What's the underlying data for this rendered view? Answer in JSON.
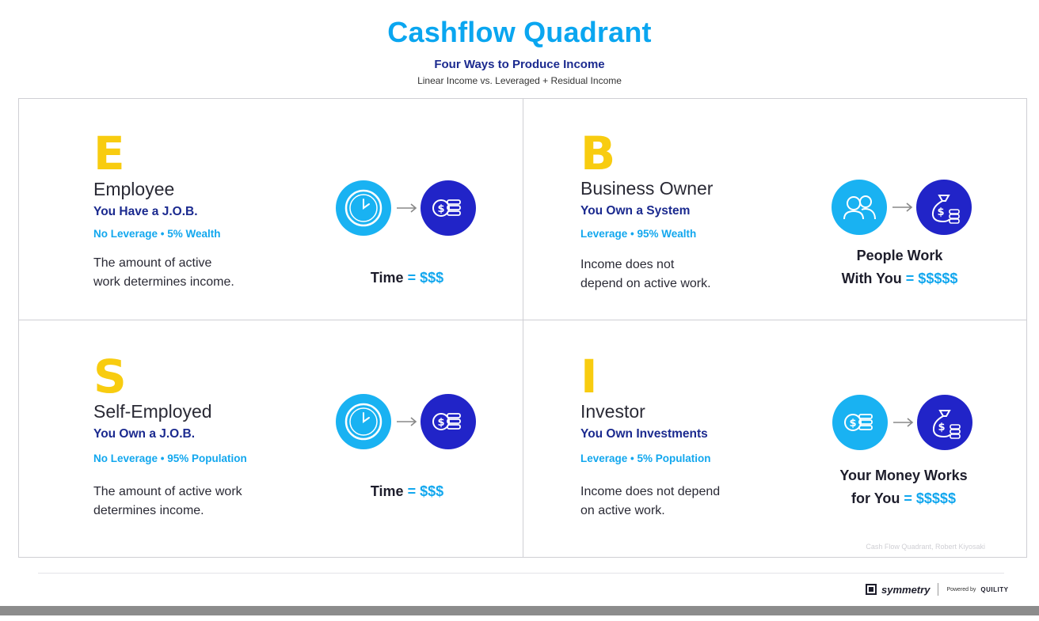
{
  "header": {
    "title": "Cashflow Quadrant",
    "subtitle": "Four Ways to Produce Income",
    "tagline": "Linear Income vs. Leveraged + Residual Income"
  },
  "quadrants": [
    {
      "letter": "E",
      "name": "Employee",
      "tagline": "You Have a J.O.B.",
      "stats": "No Leverage • 5% Wealth",
      "description_lines": [
        "The amount of active",
        "work determines income."
      ],
      "icons": [
        "clock-icon",
        "money-coins-icon"
      ],
      "formula": {
        "lines": [
          "Time"
        ],
        "equals": "= $$$"
      }
    },
    {
      "letter": "B",
      "name": "Business Owner",
      "tagline": "You Own a System",
      "stats": "Leverage • 95% Wealth",
      "description_lines": [
        "Income does not",
        "depend on active work."
      ],
      "icons": [
        "people-icon",
        "money-bag-icon"
      ],
      "formula": {
        "lines": [
          "People Work",
          "With You"
        ],
        "equals": "= $$$$$"
      }
    },
    {
      "letter": "S",
      "name": "Self-Employed",
      "tagline": "You Own a J.O.B.",
      "stats": "No Leverage • 95% Population",
      "description_lines": [
        "The amount of active work",
        "determines income."
      ],
      "icons": [
        "clock-icon",
        "money-coins-icon"
      ],
      "formula": {
        "lines": [
          "Time"
        ],
        "equals": "= $$$"
      }
    },
    {
      "letter": "I",
      "name": "Investor",
      "tagline": "You Own Investments",
      "stats": "Leverage • 5% Population",
      "description_lines": [
        "Income does not depend",
        "on active work."
      ],
      "icons": [
        "money-coins-icon",
        "money-bag-icon"
      ],
      "formula": {
        "lines": [
          "Your Money Works",
          "for You"
        ],
        "equals": "= $$$$$"
      }
    }
  ],
  "credit": "Cash Flow Quadrant, Robert Kiyosaki",
  "footer": {
    "brand": "symmetry",
    "powered_by": "Powered by",
    "partner": "QUILITY"
  },
  "colors": {
    "title": "#0aa6f0",
    "navy": "#1b2a8f",
    "accent_blue": "#12a7ee",
    "letter_yellow": "#f8cc10",
    "icon_light": "#19b2f2",
    "icon_dark": "#2124c8"
  }
}
